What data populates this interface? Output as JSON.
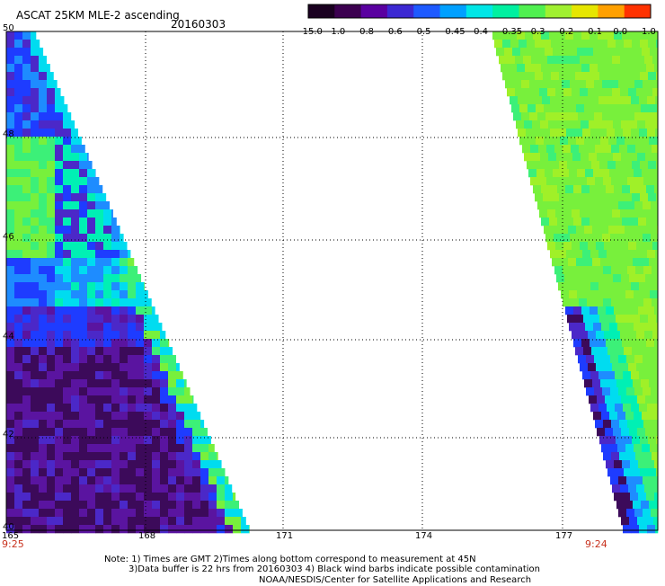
{
  "header": {
    "title": "ASCAT 25KM MLE-2 ascending",
    "date": "20160303"
  },
  "colorbar": {
    "labels": [
      "-15.0",
      "-1.0",
      "-0.8",
      "-0.6",
      "-0.5",
      "-0.45",
      "-0.4",
      "-0.35",
      "-0.3",
      "-0.2",
      "-0.1",
      "0.0",
      "1.0"
    ],
    "colors": [
      "#1a0020",
      "#3c0050",
      "#5a00a0",
      "#3c28d2",
      "#1e5aff",
      "#00a0ff",
      "#00e6e6",
      "#00f0a0",
      "#50f050",
      "#a0f030",
      "#e6e600",
      "#ffa000",
      "#ff3200"
    ]
  },
  "map": {
    "lat_labels": [
      "50",
      "48",
      "46",
      "44",
      "42",
      "40"
    ],
    "lon_labels": [
      "165",
      "168",
      "171",
      "174",
      "177"
    ],
    "time_labels": {
      "left": "9:25",
      "right": "9:24"
    }
  },
  "notes": {
    "line1": "Note: 1) Times are GMT 2)Times along bottom correspond to measurement at 45N",
    "line2": "3)Data buffer is 22 hrs from 20160303 4) Black wind barbs indicate possible contamination",
    "line3": "NOAA/NESDIS/Center for Satellite Applications and Research"
  }
}
